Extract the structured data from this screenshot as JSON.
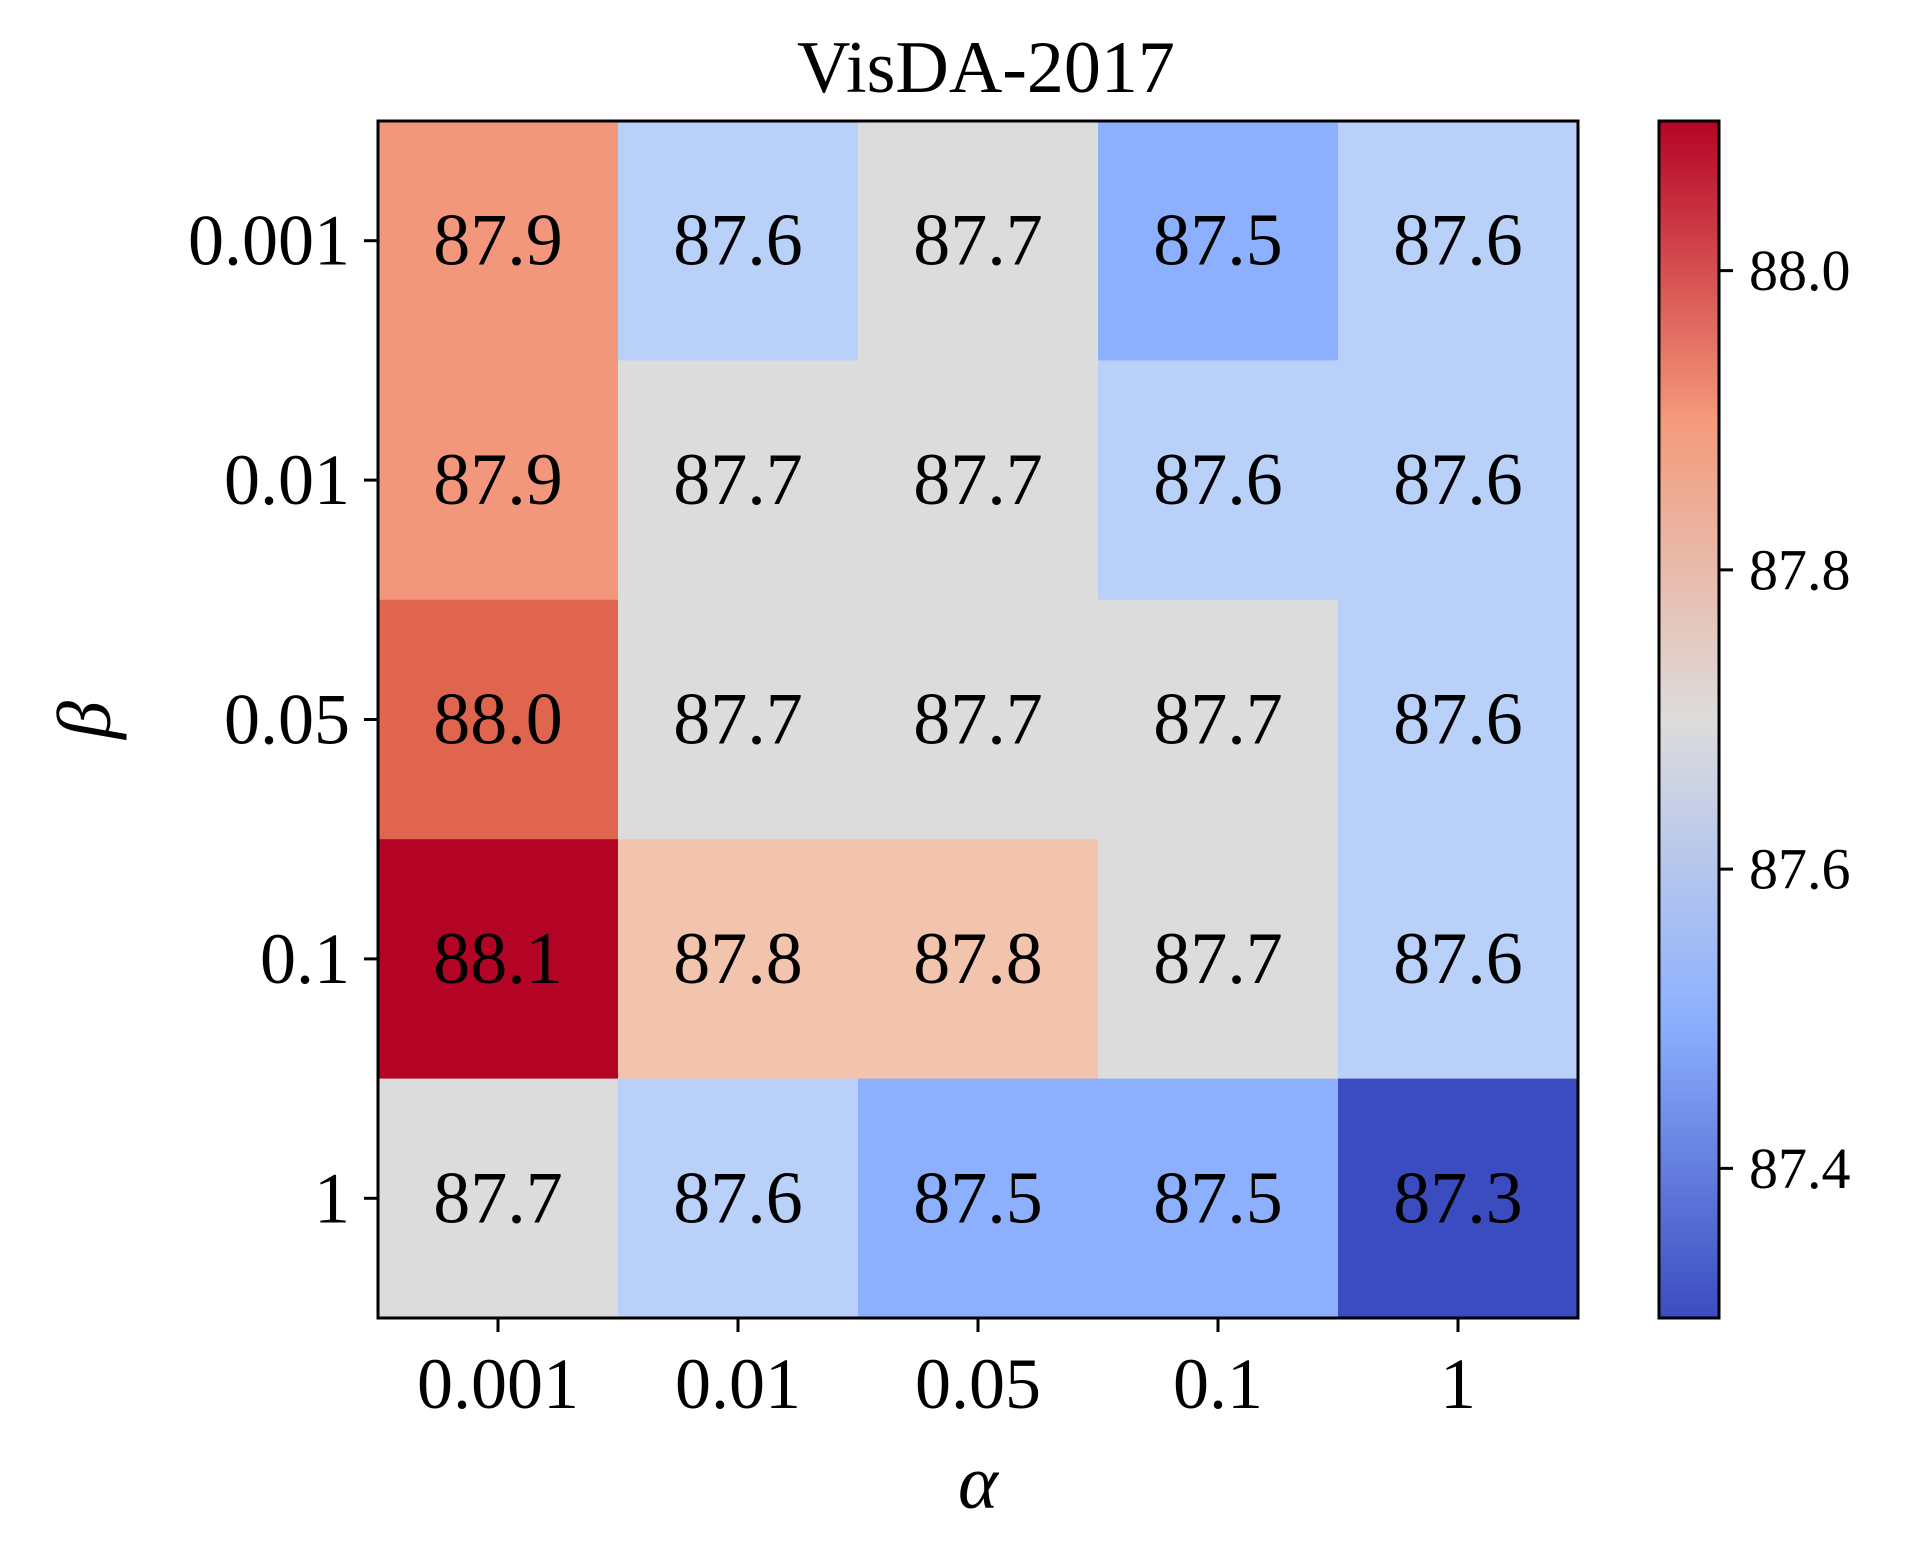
{
  "chart_data": {
    "type": "heatmap",
    "title": "VisDA-2017",
    "xlabel": "α",
    "ylabel": "β",
    "x_categories": [
      "0.001",
      "0.01",
      "0.05",
      "0.1",
      "1"
    ],
    "y_categories": [
      "0.001",
      "0.01",
      "0.05",
      "0.1",
      "1"
    ],
    "values": [
      [
        87.9,
        87.6,
        87.7,
        87.5,
        87.6
      ],
      [
        87.9,
        87.7,
        87.7,
        87.6,
        87.6
      ],
      [
        88.0,
        87.7,
        87.7,
        87.7,
        87.6
      ],
      [
        88.1,
        87.8,
        87.8,
        87.7,
        87.6
      ],
      [
        87.7,
        87.6,
        87.5,
        87.5,
        87.3
      ]
    ],
    "value_labels": [
      [
        "87.9",
        "87.6",
        "87.7",
        "87.5",
        "87.6"
      ],
      [
        "87.9",
        "87.7",
        "87.7",
        "87.6",
        "87.6"
      ],
      [
        "88.0",
        "87.7",
        "87.7",
        "87.7",
        "87.6"
      ],
      [
        "88.1",
        "87.8",
        "87.8",
        "87.7",
        "87.6"
      ],
      [
        "87.7",
        "87.6",
        "87.5",
        "87.5",
        "87.3"
      ]
    ],
    "colormap": "coolwarm",
    "colormap_stops": [
      "#3b4cc0",
      "#8db0fe",
      "#dddcdc",
      "#f49a7b",
      "#b40426"
    ],
    "cell_colors": {
      "87.3": "#3b4cc0",
      "87.5": "#8db0fe",
      "87.6": "#b9d0f9",
      "87.7": "#dddcdc",
      "87.8": "#f3c4ad",
      "87.9": "#f2977b",
      "88.0": "#e0654f",
      "88.1": "#b40426"
    },
    "colorbar": {
      "range": [
        87.3,
        88.1
      ],
      "ticks": [
        87.4,
        87.6,
        87.8,
        88.0
      ],
      "tick_labels": [
        "87.4",
        "87.6",
        "87.8",
        "88.0"
      ]
    },
    "grid": false,
    "legend": "colorbar-right"
  }
}
